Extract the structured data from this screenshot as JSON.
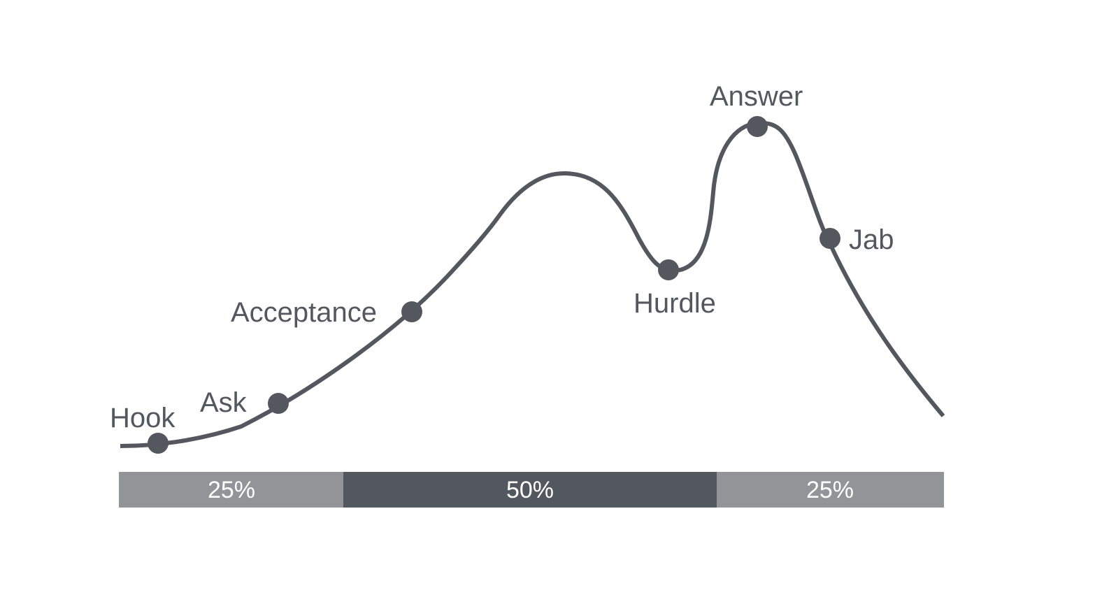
{
  "colors": {
    "curve": "#54575d",
    "dot": "#54575d",
    "label": "#54575d",
    "segment_light": "#929497",
    "segment_dark": "#53575e",
    "segment_text": "#ffffff"
  },
  "stages": [
    {
      "id": "hook",
      "label": "Hook"
    },
    {
      "id": "ask",
      "label": "Ask"
    },
    {
      "id": "acceptance",
      "label": "Acceptance"
    },
    {
      "id": "hurdle",
      "label": "Hurdle"
    },
    {
      "id": "answer",
      "label": "Answer"
    },
    {
      "id": "jab",
      "label": "Jab"
    }
  ],
  "segments": [
    {
      "id": "opening",
      "label": "25%",
      "share": 25,
      "tone": "light"
    },
    {
      "id": "middle",
      "label": "50%",
      "share": 50,
      "tone": "dark"
    },
    {
      "id": "closing",
      "label": "25%",
      "share": 25,
      "tone": "light"
    }
  ]
}
